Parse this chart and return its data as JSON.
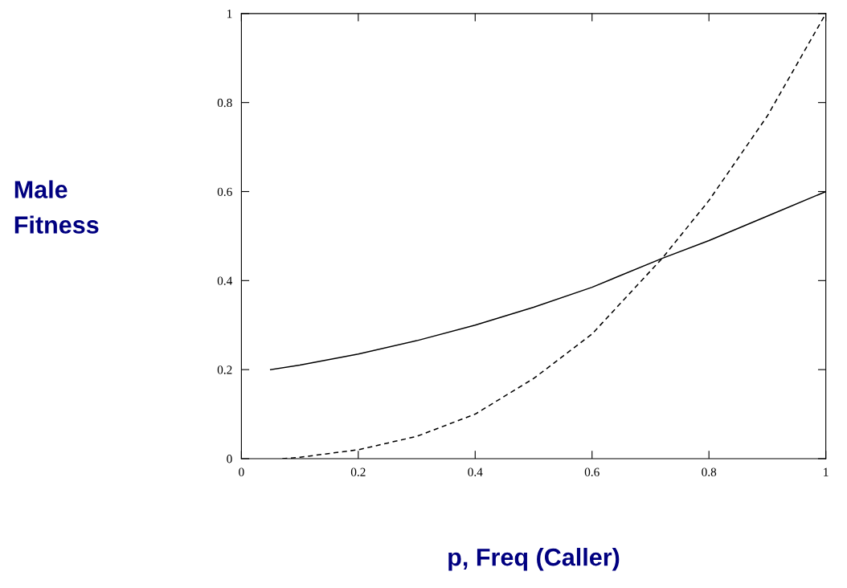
{
  "chart_data": {
    "type": "line",
    "xlabel": "p, Freq (Caller)",
    "ylabel": "Male\nFitness",
    "xlim": [
      0,
      1
    ],
    "ylim": [
      0,
      1
    ],
    "xticks": [
      0,
      0.2,
      0.4,
      0.6,
      0.8,
      1
    ],
    "yticks": [
      0,
      0.2,
      0.4,
      0.6,
      0.8,
      1
    ],
    "grid": false,
    "legend": false,
    "marker": "none",
    "series": [
      {
        "color": "#000000",
        "line_style": "solid",
        "x": [
          0.05,
          0.1,
          0.2,
          0.3,
          0.4,
          0.5,
          0.6,
          0.72,
          0.8,
          0.9,
          1
        ],
        "values": [
          0.2,
          0.21,
          0.235,
          0.265,
          0.3,
          0.34,
          0.385,
          0.45,
          0.49,
          0.545,
          0.6
        ]
      },
      {
        "color": "#000000",
        "line_style": "dashed",
        "x": [
          0.07,
          0.1,
          0.2,
          0.3,
          0.4,
          0.5,
          0.6,
          0.72,
          0.8,
          0.9,
          1
        ],
        "values": [
          0.0,
          0.003,
          0.02,
          0.05,
          0.1,
          0.18,
          0.28,
          0.45,
          0.58,
          0.77,
          1.0
        ]
      }
    ]
  }
}
